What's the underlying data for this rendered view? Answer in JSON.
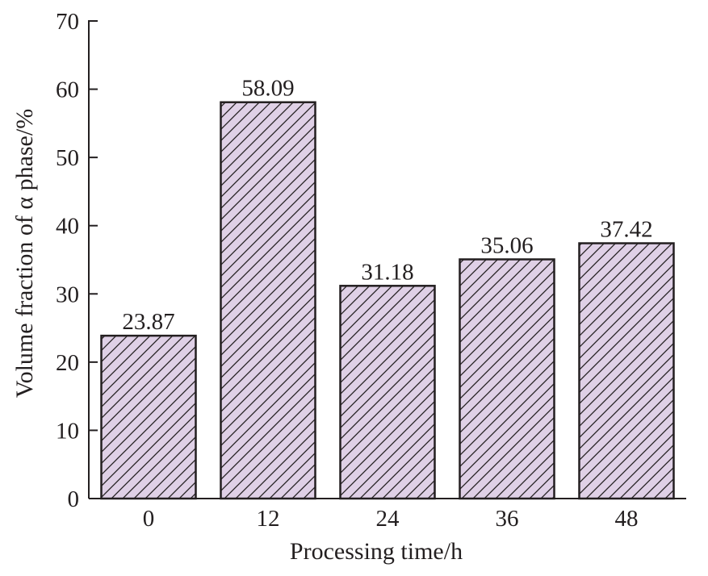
{
  "chart_data": {
    "type": "bar",
    "categories": [
      "0",
      "12",
      "24",
      "36",
      "48"
    ],
    "values": [
      23.87,
      58.09,
      31.18,
      35.06,
      37.42
    ],
    "data_labels": [
      "23.87",
      "58.09",
      "31.18",
      "35.06",
      "37.42"
    ],
    "xlabel": "Processing time/h",
    "ylabel": "Volume fraction of α phase/%",
    "ylim": [
      0,
      70
    ],
    "yticks": [
      "0",
      "10",
      "20",
      "30",
      "40",
      "50",
      "60",
      "70"
    ],
    "grid": false,
    "legend": "none",
    "bar_fill_color": "#dfd0e6",
    "hatch_color": "#231f20",
    "hatch_style": "diagonal"
  }
}
